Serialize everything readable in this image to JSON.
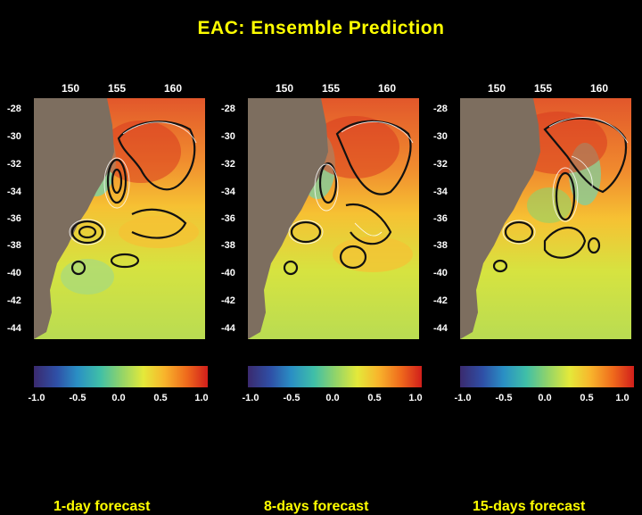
{
  "title": "EAC: Ensemble Prediction",
  "longitudes": [
    "150",
    "155",
    "160"
  ],
  "latitudes": [
    "-28",
    "-30",
    "-32",
    "-34",
    "-36",
    "-38",
    "-40",
    "-42",
    "-44"
  ],
  "colorbar": {
    "ticks": [
      "-1.0",
      "-0.5",
      "0.0",
      "0.5",
      "1.0"
    ],
    "colors": [
      "#3a2a6e",
      "#2f4fa6",
      "#2a8fc4",
      "#3fbfa8",
      "#8fd36b",
      "#e4e93a",
      "#f8b52c",
      "#ef6a1c",
      "#d11e1b"
    ]
  },
  "land_color": "#7d6e5f",
  "panels": [
    {
      "caption": "1-day forecast"
    },
    {
      "caption": "8-days forecast"
    },
    {
      "caption": "15-days forecast"
    }
  ]
}
